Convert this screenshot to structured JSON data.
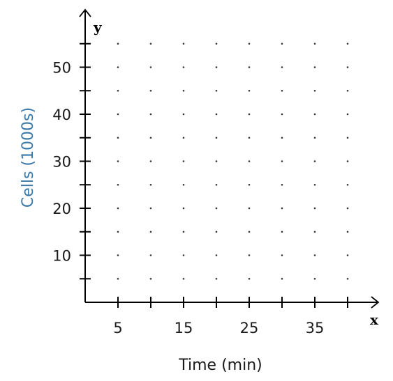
{
  "chart_data": {
    "type": "scatter",
    "title": "",
    "xlabel": "Time (min)",
    "ylabel": "Cells (1000s)",
    "x_axis_letter": "x",
    "y_axis_letter": "y",
    "xlim": [
      0,
      45
    ],
    "ylim": [
      0,
      58
    ],
    "x_ticks": [
      5,
      10,
      15,
      20,
      25,
      30,
      35,
      40
    ],
    "x_tick_labels": [
      {
        "value": 5,
        "label": "5"
      },
      {
        "value": 15,
        "label": "15"
      },
      {
        "value": 25,
        "label": "25"
      },
      {
        "value": 35,
        "label": "35"
      }
    ],
    "y_ticks": [
      5,
      10,
      15,
      20,
      25,
      30,
      35,
      40,
      45,
      50,
      55
    ],
    "y_tick_labels": [
      {
        "value": 10,
        "label": "10"
      },
      {
        "value": 20,
        "label": "20"
      },
      {
        "value": 30,
        "label": "30"
      },
      {
        "value": 40,
        "label": "40"
      },
      {
        "value": 50,
        "label": "50"
      }
    ],
    "grid": "dotted",
    "series": [],
    "colors": {
      "axis": "#000000",
      "ylabel": "#3a78a8",
      "xlabel": "#1a1a1a",
      "grid_dot": "#333333"
    }
  }
}
